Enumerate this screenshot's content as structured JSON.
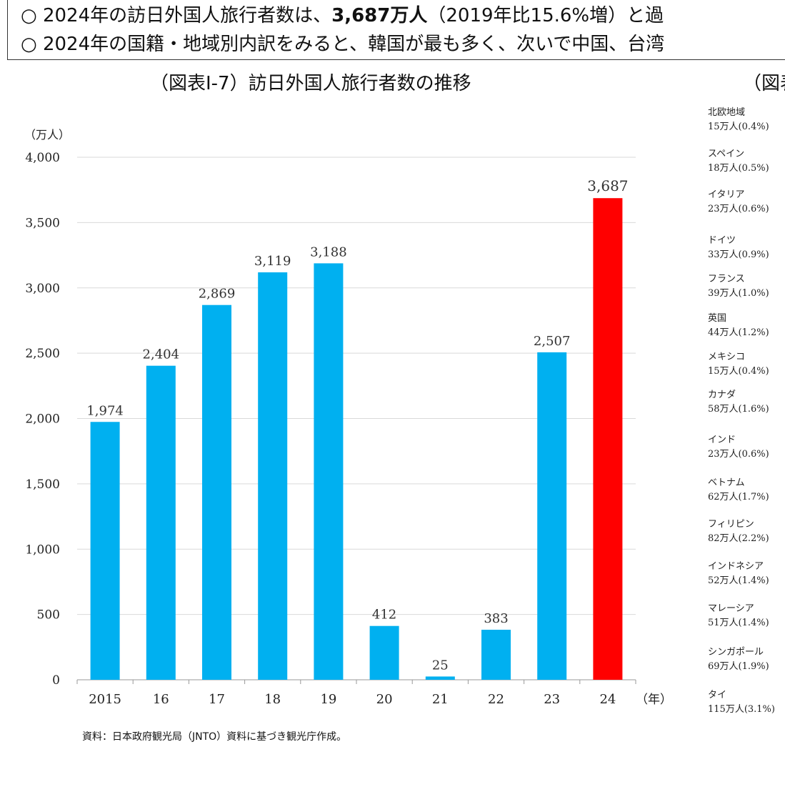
{
  "summary": {
    "line1_prefix": "○ 2024年の訪日外国人旅行者数は、",
    "line1_bold": "3,687万人",
    "line1_suffix": "（2019年比15.6%増）と過",
    "line2": "○ 2024年の国籍・地域別内訳をみると、韓国が最も多く、次いで中国、台湾"
  },
  "chart_title": "（図表Ⅰ-7）訪日外国人旅行者数の推移",
  "right_title": "（図表",
  "source_note": "資料：日本政府観光局（JNTO）資料に基づき観光庁作成。",
  "chart_data": {
    "type": "bar",
    "title": "（図表Ⅰ-7）訪日外国人旅行者数の推移",
    "ylabel": "（万人）",
    "xlabel": "（年）",
    "ylim": [
      0,
      4000
    ],
    "yticks": [
      "0",
      "500",
      "1,000",
      "1,500",
      "2,000",
      "2,500",
      "3,000",
      "3,500",
      "4,000"
    ],
    "categories": [
      "2015",
      "16",
      "17",
      "18",
      "19",
      "20",
      "21",
      "22",
      "23",
      "24"
    ],
    "values": [
      1974,
      2404,
      2869,
      3119,
      3188,
      412,
      25,
      383,
      2507,
      3687
    ],
    "data_labels": [
      "1,974",
      "2,404",
      "2,869",
      "3,119",
      "3,188",
      "412",
      "25",
      "383",
      "2,507",
      "3,687"
    ],
    "grid": true,
    "colors": {
      "default": "#00B0F0",
      "highlight": "#FF0000"
    },
    "highlight_index": 9
  },
  "right_list": [
    {
      "name": "北欧地域",
      "value": "15万人(0.4%)"
    },
    {
      "name": "スペイン",
      "value": "18万人(0.5%)"
    },
    {
      "name": "イタリア",
      "value": "23万人(0.6%)"
    },
    {
      "name": "ドイツ",
      "value": "33万人(0.9%)"
    },
    {
      "name": "フランス",
      "value": "39万人(1.0%)"
    },
    {
      "name": "英国",
      "value": "44万人(1.2%)"
    },
    {
      "name": "メキシコ",
      "value": "15万人(0.4%)"
    },
    {
      "name": "カナダ",
      "value": "58万人(1.6%)"
    },
    {
      "name": "インド",
      "value": "23万人(0.6%)"
    },
    {
      "name": "ベトナム",
      "value": "62万人(1.7%)"
    },
    {
      "name": "フィリピン",
      "value": "82万人(2.2%)"
    },
    {
      "name": "インドネシア",
      "value": "52万人(1.4%)"
    },
    {
      "name": "マレーシア",
      "value": "51万人(1.4%)"
    },
    {
      "name": "シンガポール",
      "value": "69万人(1.9%)"
    },
    {
      "name": "タイ",
      "value": "115万人(3.1%)"
    }
  ]
}
